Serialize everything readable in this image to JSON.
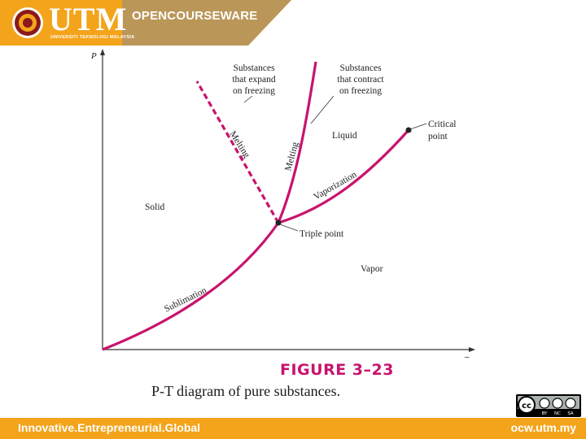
{
  "header": {
    "logo_text": "UTM",
    "logo_subtitle": "UNIVERSITI TEKNOLOGI MALAYSIA",
    "title": "OPENCOURSEWARE",
    "brand_color": "#f3a41b",
    "logo_icon": "utm-seal-icon"
  },
  "diagram": {
    "axis_p": "P",
    "axis_t": "T",
    "labels": {
      "expand_line1": "Substances",
      "expand_line2": "that expand",
      "expand_line3": "on freezing",
      "contract_line1": "Substances",
      "contract_line2": "that contract",
      "contract_line3": "on freezing",
      "melting_dashed": "Melting",
      "melting_solid": "Melting",
      "liquid": "Liquid",
      "critical_line1": "Critical",
      "critical_line2": "point",
      "vaporization": "Vaporization",
      "solid": "Solid",
      "triple_point": "Triple point",
      "vapor": "Vapor",
      "sublimation": "Sublimation"
    },
    "curve_color": "#c8136e"
  },
  "figure": {
    "title": "FIGURE 3–23",
    "caption": "P-T diagram of pure substances."
  },
  "license": {
    "icon": "creative-commons-by-nc-sa-icon",
    "by": "BY",
    "nc": "NC",
    "sa": "SA"
  },
  "footer": {
    "left": "Innovative.Entrepreneurial.Global",
    "right": "ocw.utm.my"
  }
}
